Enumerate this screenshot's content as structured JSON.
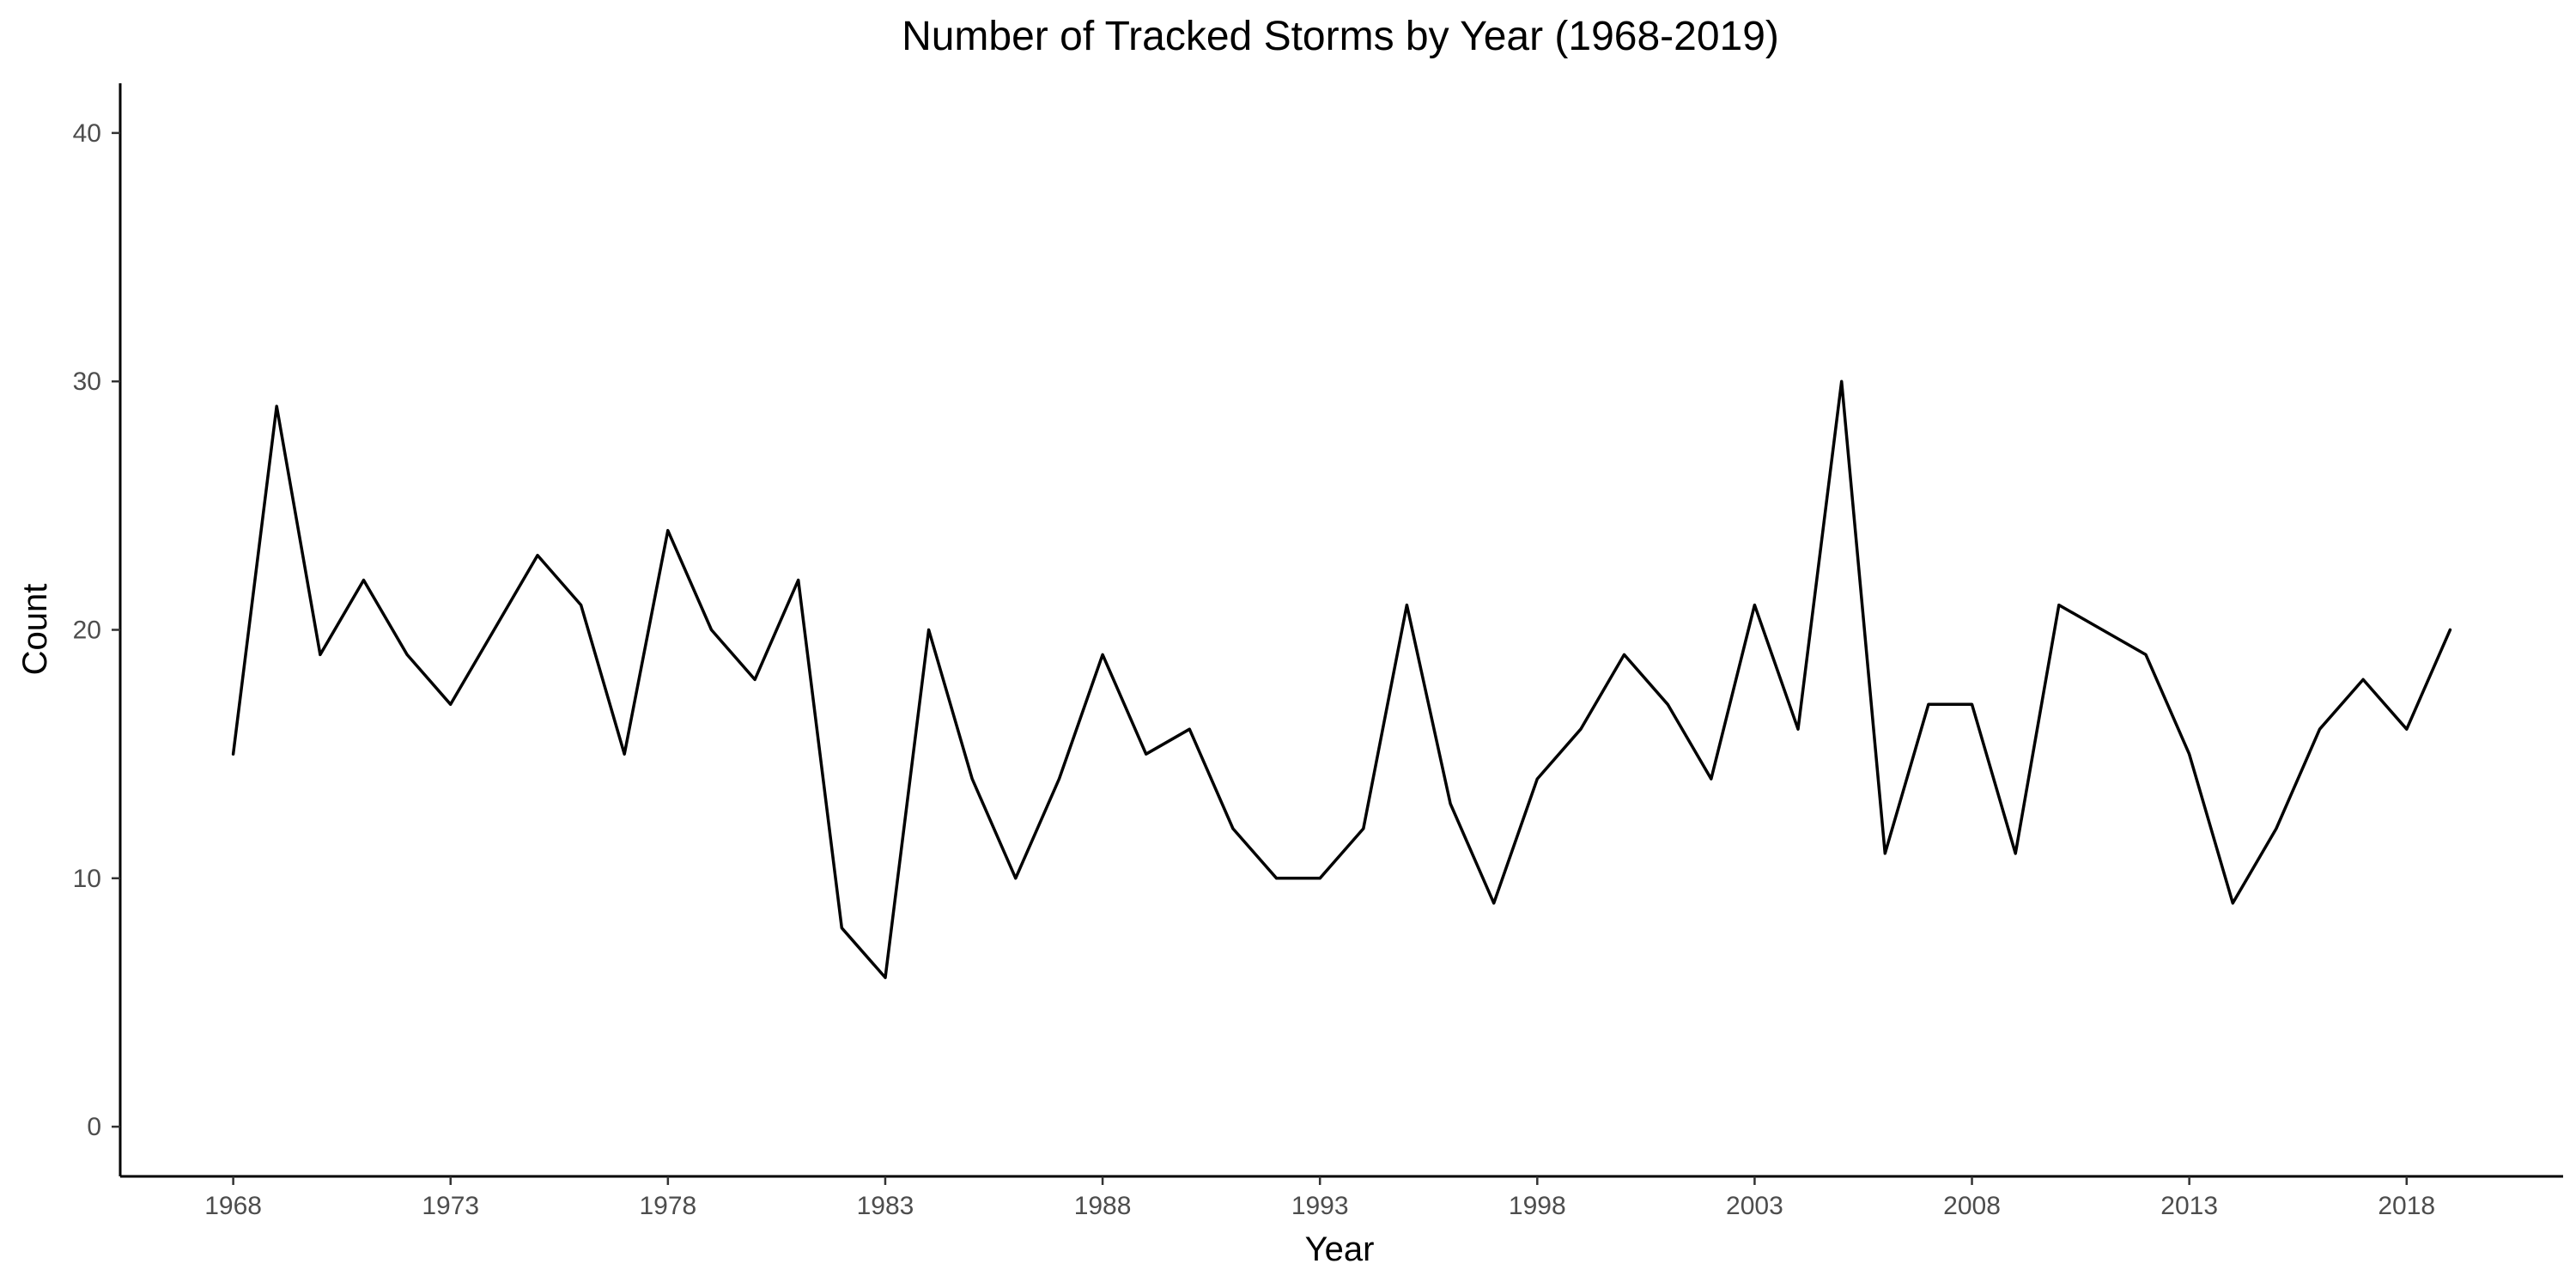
{
  "chart_data": {
    "type": "line",
    "title": "Number of Tracked Storms by Year (1968-2019)",
    "xlabel": "Year",
    "ylabel": "Count",
    "x": [
      1968,
      1969,
      1970,
      1971,
      1972,
      1973,
      1974,
      1975,
      1976,
      1977,
      1978,
      1979,
      1980,
      1981,
      1982,
      1983,
      1984,
      1985,
      1986,
      1987,
      1988,
      1989,
      1990,
      1991,
      1992,
      1993,
      1994,
      1995,
      1996,
      1997,
      1998,
      1999,
      2000,
      2001,
      2002,
      2003,
      2004,
      2005,
      2006,
      2007,
      2008,
      2009,
      2010,
      2011,
      2012,
      2013,
      2014,
      2015,
      2016,
      2017,
      2018,
      2019
    ],
    "series": [
      {
        "values": [
          15,
          29,
          19,
          22,
          19,
          17,
          20,
          23,
          21,
          15,
          24,
          20,
          18,
          22,
          8,
          6,
          20,
          14,
          10,
          14,
          19,
          15,
          16,
          12,
          10,
          10,
          12,
          21,
          13,
          9,
          14,
          16,
          19,
          17,
          14,
          21,
          16,
          30,
          11,
          17,
          17,
          11,
          21,
          20,
          19,
          15,
          9,
          12,
          16,
          18,
          16,
          20
        ]
      }
    ],
    "xlim": [
      1965.4,
      2021.6
    ],
    "ylim": [
      -2,
      42
    ],
    "x_ticks": [
      1968,
      1973,
      1978,
      1983,
      1988,
      1993,
      1998,
      2003,
      2008,
      2013,
      2018
    ],
    "y_ticks": [
      0,
      10,
      20,
      30,
      40
    ],
    "grid": false,
    "legend": "none",
    "line_color": "#000000"
  }
}
